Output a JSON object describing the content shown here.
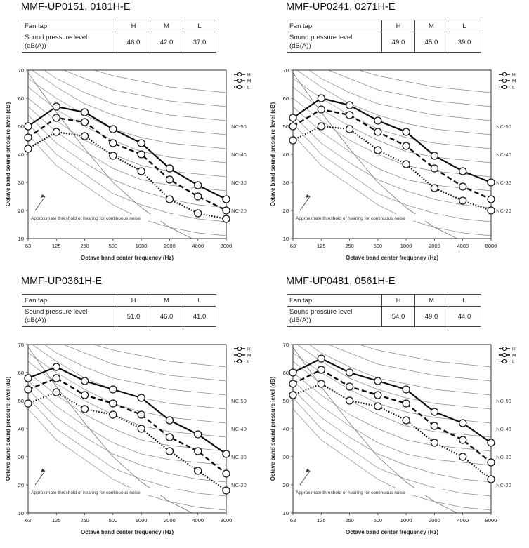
{
  "shared": {
    "row_fan_tap": "Fan tap",
    "row_spl_line1": "Sound pressure level",
    "row_spl_line2": "(dB(A))",
    "col_labels": [
      "H",
      "M",
      "L"
    ],
    "nc_labels": [
      "NC-50",
      "NC-40",
      "NC-30",
      "NC-20"
    ],
    "threshold_text": "Approximate threshold of hearing for continuous noise"
  },
  "panels": [
    {
      "title": "MMF-UP0151, 0181H-E",
      "spl_values": [
        "46.0",
        "42.0",
        "37.0"
      ]
    },
    {
      "title": "MMF-UP0241, 0271H-E",
      "spl_values": [
        "49.0",
        "45.0",
        "39.0"
      ]
    },
    {
      "title": "MMF-UP0361H-E",
      "spl_values": [
        "51.0",
        "46.0",
        "41.0"
      ]
    },
    {
      "title": "MMF-UP0481, 0561H-E",
      "spl_values": [
        "54.0",
        "49.0",
        "44.0"
      ]
    }
  ],
  "chart_data": [
    {
      "type": "line",
      "categories": [
        "63",
        "125",
        "250",
        "500",
        "1000",
        "2000",
        "4000",
        "8000"
      ],
      "xlabel": "Octave band center frequency (Hz)",
      "ylabel": "Octave band sound pressure level (dB)",
      "ylim": [
        10,
        70
      ],
      "yticks": [
        10,
        20,
        30,
        40,
        50,
        60,
        70
      ],
      "grid": "NC curves",
      "legend": "top-right",
      "series": [
        {
          "name": "H",
          "values": [
            50,
            57,
            55,
            49,
            44,
            35,
            29,
            24
          ]
        },
        {
          "name": "M",
          "values": [
            46,
            53,
            51.5,
            44,
            40,
            31,
            25,
            20
          ]
        },
        {
          "name": "L",
          "values": [
            42,
            48,
            46.5,
            39.5,
            34,
            24,
            19,
            17
          ]
        }
      ]
    },
    {
      "type": "line",
      "categories": [
        "63",
        "125",
        "250",
        "500",
        "1000",
        "2000",
        "4000",
        "8000"
      ],
      "xlabel": "Octave band center frequency (Hz)",
      "ylabel": "Octave band sound pressure level (dB)",
      "ylim": [
        10,
        70
      ],
      "yticks": [
        10,
        20,
        30,
        40,
        50,
        60,
        70
      ],
      "grid": "NC curves",
      "legend": "top-right",
      "series": [
        {
          "name": "H",
          "values": [
            53,
            60,
            57.5,
            52,
            48,
            39.5,
            34,
            30
          ]
        },
        {
          "name": "M",
          "values": [
            50,
            56,
            54,
            48,
            43,
            35,
            28.5,
            24
          ]
        },
        {
          "name": "L",
          "values": [
            45,
            50,
            49,
            41.5,
            36.5,
            28,
            23.5,
            20
          ]
        }
      ]
    },
    {
      "type": "line",
      "categories": [
        "63",
        "125",
        "250",
        "500",
        "1000",
        "2000",
        "4000",
        "8000"
      ],
      "xlabel": "Octave band center frequency (Hz)",
      "ylabel": "Octave band sound pressure level (dB)",
      "ylim": [
        10,
        70
      ],
      "yticks": [
        10,
        20,
        30,
        40,
        50,
        60,
        70
      ],
      "grid": "NC curves",
      "legend": "top-right",
      "series": [
        {
          "name": "H",
          "values": [
            58,
            62,
            57,
            54,
            51,
            43,
            38,
            31
          ]
        },
        {
          "name": "M",
          "values": [
            54,
            58,
            52,
            49,
            45,
            37,
            32,
            24
          ]
        },
        {
          "name": "L",
          "values": [
            49,
            53,
            47,
            45,
            40,
            32,
            25,
            18
          ]
        }
      ]
    },
    {
      "type": "line",
      "categories": [
        "63",
        "125",
        "250",
        "500",
        "1000",
        "2000",
        "4000",
        "8000"
      ],
      "xlabel": "Octave band center frequency (Hz)",
      "ylabel": "Octave band sound pressure level (dB)",
      "ylim": [
        10,
        70
      ],
      "yticks": [
        10,
        20,
        30,
        40,
        50,
        60,
        70
      ],
      "grid": "NC curves",
      "legend": "top-right",
      "series": [
        {
          "name": "H",
          "values": [
            60,
            65,
            60,
            57,
            54,
            46,
            42,
            35
          ]
        },
        {
          "name": "M",
          "values": [
            56,
            61,
            55,
            52,
            49,
            41,
            36,
            28
          ]
        },
        {
          "name": "L",
          "values": [
            52,
            56,
            50,
            48,
            43,
            35,
            30,
            22
          ]
        }
      ]
    }
  ]
}
